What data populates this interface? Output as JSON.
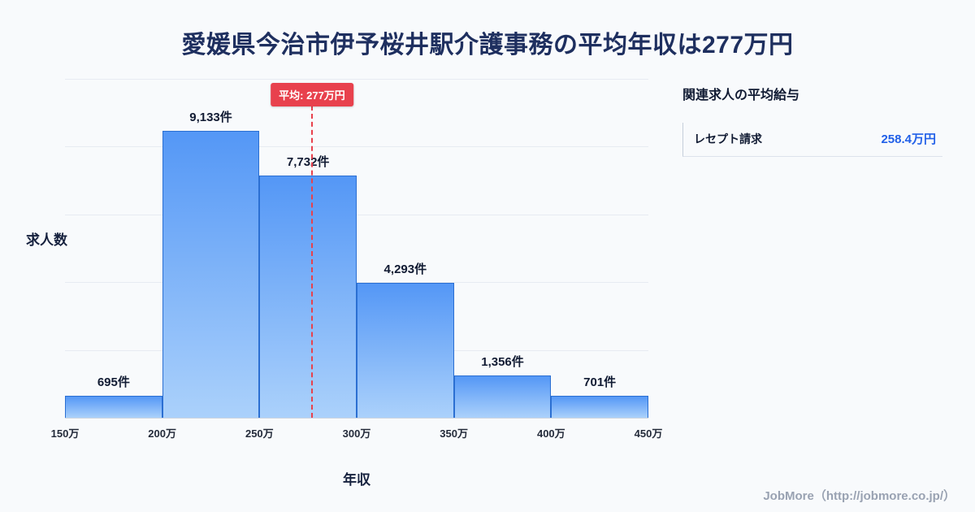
{
  "title": "愛媛県今治市伊予桜井駅介護事務の平均年収は277万円",
  "footer": "JobMore（http://jobmore.co.jp/）",
  "chart_data": {
    "type": "bar",
    "title": "愛媛県今治市伊予桜井駅介護事務の平均年収は277万円",
    "xlabel": "年収",
    "ylabel": "求人数",
    "x_range": [
      150,
      450
    ],
    "x_ticks": [
      "150万",
      "200万",
      "250万",
      "300万",
      "350万",
      "400万",
      "450万"
    ],
    "categories": [
      "150万-200万",
      "200万-250万",
      "250万-300万",
      "300万-350万",
      "350万-400万",
      "400万-450万"
    ],
    "values": [
      695,
      9133,
      7732,
      4293,
      1356,
      701
    ],
    "bar_labels": [
      "695件",
      "9,133件",
      "7,732件",
      "4,293件",
      "1,356件",
      "701件"
    ],
    "ylim": [
      0,
      10800
    ],
    "grid": "horizontal",
    "legend": "none",
    "average": {
      "value": 277,
      "label": "平均: 277万円"
    },
    "colors": {
      "bar_top": "#5497f6",
      "bar_bottom": "#abd1fb",
      "bar_border": "#2b6fd2",
      "average_line": "#e8414d"
    }
  },
  "side_panel": {
    "heading": "関連求人の平均給与",
    "items": [
      {
        "label": "レセプト請求",
        "value": "258.4万円",
        "value_color": "#2160e8"
      }
    ]
  }
}
